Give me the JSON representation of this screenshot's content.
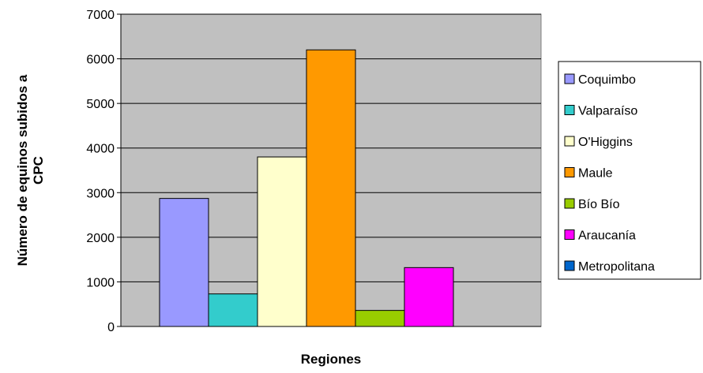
{
  "chart_data": {
    "type": "bar",
    "title": "",
    "xlabel": "Regiones",
    "ylabel_lines": [
      "Número de equinos subidos a",
      "CPC"
    ],
    "ylim": [
      0,
      7000
    ],
    "ytick_step": 1000,
    "yticks": [
      "0",
      "1000",
      "2000",
      "3000",
      "4000",
      "5000",
      "6000",
      "7000"
    ],
    "grid": true,
    "legend_position": "right",
    "plot_background": "#c0c0c0",
    "series": [
      {
        "name": "Coquimbo",
        "value": 2870,
        "color": "#9999ff"
      },
      {
        "name": "Valparaíso",
        "value": 730,
        "color": "#33cccc"
      },
      {
        "name": "O'Higgins",
        "value": 3800,
        "color": "#ffffcc"
      },
      {
        "name": "Maule",
        "value": 6200,
        "color": "#ff9900"
      },
      {
        "name": "Bío Bío",
        "value": 360,
        "color": "#99cc00"
      },
      {
        "name": "Araucanía",
        "value": 1320,
        "color": "#ff00ff"
      },
      {
        "name": "Metropolitana",
        "value": 0,
        "color": "#0066cc"
      }
    ]
  }
}
